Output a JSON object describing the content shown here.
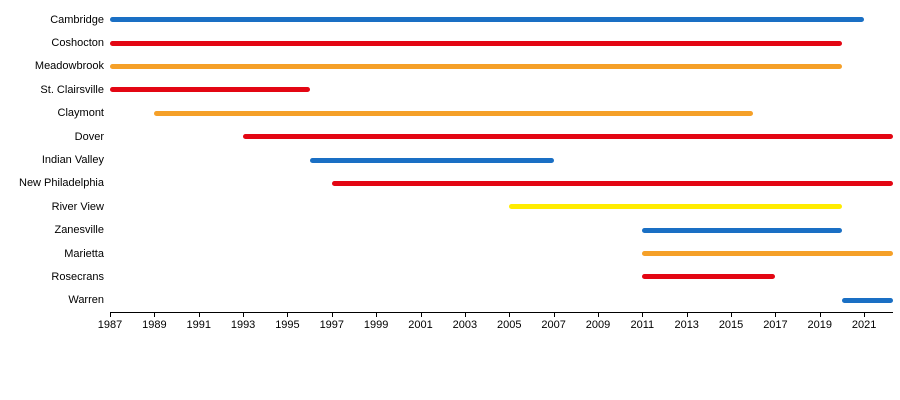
{
  "chart_data": {
    "type": "bar",
    "subtype": "timeline-gantt",
    "title": "",
    "xlabel": "",
    "ylabel": "",
    "grid": false,
    "legend_position": "none",
    "xlim": [
      1987,
      2022.3
    ],
    "x_ticks": [
      1987,
      1989,
      1991,
      1993,
      1995,
      1997,
      1999,
      2001,
      2003,
      2005,
      2007,
      2009,
      2011,
      2013,
      2015,
      2017,
      2019,
      2021
    ],
    "colors": {
      "blue": "#1a6fc4",
      "red": "#e30613",
      "orange": "#f5a028",
      "yellow": "#ffec00",
      "axis": "#000000"
    },
    "rows": [
      {
        "label": "Cambridge",
        "start": 1987,
        "end": 2021,
        "color": "#1a6fc4"
      },
      {
        "label": "Coshocton",
        "start": 1987,
        "end": 2020,
        "color": "#e30613"
      },
      {
        "label": "Meadowbrook",
        "start": 1987,
        "end": 2020,
        "color": "#f5a028"
      },
      {
        "label": "St. Clairsville",
        "start": 1987,
        "end": 1996,
        "color": "#e30613"
      },
      {
        "label": "Claymont",
        "start": 1989,
        "end": 2016,
        "color": "#f5a028"
      },
      {
        "label": "Dover",
        "start": 1993,
        "end": 2022.3,
        "color": "#e30613"
      },
      {
        "label": "Indian Valley",
        "start": 1996,
        "end": 2007,
        "color": "#1a6fc4"
      },
      {
        "label": "New Philadelphia",
        "start": 1997,
        "end": 2022.3,
        "color": "#e30613"
      },
      {
        "label": "River View",
        "start": 2005,
        "end": 2020,
        "color": "#ffec00"
      },
      {
        "label": "Zanesville",
        "start": 2011,
        "end": 2020,
        "color": "#1a6fc4"
      },
      {
        "label": "Marietta",
        "start": 2011,
        "end": 2022.3,
        "color": "#f5a028"
      },
      {
        "label": "Rosecrans",
        "start": 2011,
        "end": 2017,
        "color": "#e30613"
      },
      {
        "label": "Warren",
        "start": 2020,
        "end": 2022.3,
        "color": "#1a6fc4"
      }
    ]
  }
}
